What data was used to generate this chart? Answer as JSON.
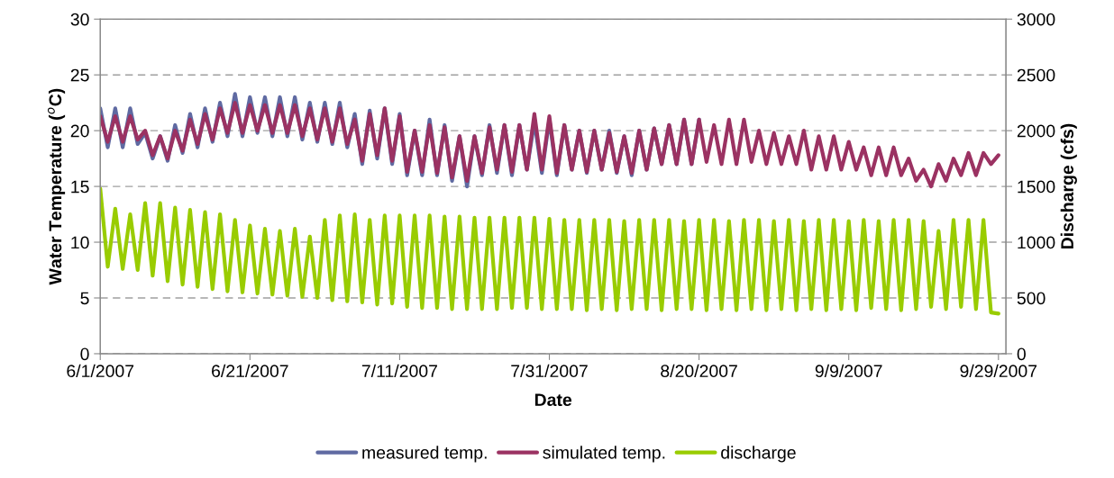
{
  "chart_data": {
    "type": "line",
    "xlabel": "Date",
    "ylabel": "Water Temperature ($^{o}$C)",
    "y2label": "Discharge (cfs)",
    "x": [
      "2007-06-01",
      "2007-06-02",
      "2007-06-03",
      "2007-06-04",
      "2007-06-05",
      "2007-06-06",
      "2007-06-07",
      "2007-06-08",
      "2007-06-09",
      "2007-06-10",
      "2007-06-11",
      "2007-06-12",
      "2007-06-13",
      "2007-06-14",
      "2007-06-15",
      "2007-06-16",
      "2007-06-17",
      "2007-06-18",
      "2007-06-19",
      "2007-06-20",
      "2007-06-21",
      "2007-06-22",
      "2007-06-23",
      "2007-06-24",
      "2007-06-25",
      "2007-06-26",
      "2007-06-27",
      "2007-06-28",
      "2007-06-29",
      "2007-06-30",
      "2007-07-01",
      "2007-07-02",
      "2007-07-03",
      "2007-07-04",
      "2007-07-05",
      "2007-07-06",
      "2007-07-07",
      "2007-07-08",
      "2007-07-09",
      "2007-07-10",
      "2007-07-11",
      "2007-07-12",
      "2007-07-13",
      "2007-07-14",
      "2007-07-15",
      "2007-07-16",
      "2007-07-17",
      "2007-07-18",
      "2007-07-19",
      "2007-07-20",
      "2007-07-21",
      "2007-07-22",
      "2007-07-23",
      "2007-07-24",
      "2007-07-25",
      "2007-07-26",
      "2007-07-27",
      "2007-07-28",
      "2007-07-29",
      "2007-07-30",
      "2007-07-31",
      "2007-08-01",
      "2007-08-02",
      "2007-08-03",
      "2007-08-04",
      "2007-08-05",
      "2007-08-06",
      "2007-08-07",
      "2007-08-08",
      "2007-08-09",
      "2007-08-10",
      "2007-08-11",
      "2007-08-12",
      "2007-08-13",
      "2007-08-14",
      "2007-08-15",
      "2007-08-16",
      "2007-08-17",
      "2007-08-18",
      "2007-08-19",
      "2007-08-20",
      "2007-08-21",
      "2007-08-22",
      "2007-08-23",
      "2007-08-24",
      "2007-08-25",
      "2007-08-26",
      "2007-08-27",
      "2007-08-28",
      "2007-08-29",
      "2007-08-30",
      "2007-08-31",
      "2007-09-01",
      "2007-09-02",
      "2007-09-03",
      "2007-09-04",
      "2007-09-05",
      "2007-09-06",
      "2007-09-07",
      "2007-09-08",
      "2007-09-09",
      "2007-09-10",
      "2007-09-11",
      "2007-09-12",
      "2007-09-13",
      "2007-09-14",
      "2007-09-15",
      "2007-09-16",
      "2007-09-17",
      "2007-09-18",
      "2007-09-19",
      "2007-09-20",
      "2007-09-21",
      "2007-09-22",
      "2007-09-23",
      "2007-09-24",
      "2007-09-25",
      "2007-09-26",
      "2007-09-27",
      "2007-09-28",
      "2007-09-29"
    ],
    "series": [
      {
        "name": "measured temp.",
        "color": "#5f6aa2",
        "values": [
          22,
          18.5,
          22,
          18.5,
          22,
          18.8,
          19.8,
          17.5,
          19.5,
          17.3,
          20.5,
          18,
          21.5,
          18.5,
          22,
          19,
          22.5,
          19.5,
          23.3,
          19.5,
          23,
          19.8,
          23,
          19.5,
          23,
          19.5,
          23,
          19.2,
          22.5,
          19,
          22.5,
          18.8,
          22.5,
          18.5,
          21.5,
          17,
          21.8,
          17.5,
          22,
          17,
          21.5,
          16,
          20,
          16,
          21,
          16,
          20.5,
          15.5,
          19.5,
          15,
          19.5,
          16,
          20.5,
          16.2,
          20.5,
          16,
          20.5,
          16.5,
          20.8,
          16.2,
          21,
          16,
          20.5,
          16.5,
          20,
          16.2,
          20,
          16.5,
          20,
          16.2,
          19.5,
          16,
          20,
          16.5,
          20.2,
          17,
          20.5,
          17,
          21,
          17,
          21,
          null,
          null,
          null,
          null,
          null,
          null,
          null,
          null,
          null,
          null,
          null,
          null,
          null,
          null,
          null,
          null,
          null,
          null,
          null,
          null,
          null,
          null,
          null,
          null,
          null,
          null,
          null,
          null,
          null,
          null,
          null,
          null,
          null,
          null,
          null,
          null,
          null,
          null,
          null,
          null
        ]
      },
      {
        "name": "simulated temp.",
        "color": "#9b3262",
        "values": [
          21.3,
          19,
          21.3,
          19,
          21.3,
          19.2,
          20,
          17.8,
          19.5,
          17.5,
          20,
          18.2,
          21,
          18.8,
          21.5,
          19.2,
          22,
          19.8,
          22.5,
          19.8,
          22.3,
          20,
          22.3,
          19.8,
          22.3,
          19.8,
          22.3,
          19.5,
          22,
          19.2,
          22,
          19,
          22,
          18.8,
          21,
          17.3,
          21.5,
          17.8,
          22,
          17.3,
          21.3,
          16.3,
          20,
          16.3,
          20.5,
          16.2,
          20.3,
          15.8,
          19.5,
          15.5,
          19.5,
          16.2,
          20.3,
          16.5,
          20.5,
          16.3,
          20.5,
          16.5,
          21.5,
          16.5,
          21.3,
          16.2,
          20.5,
          16.5,
          20,
          16.3,
          20,
          16.5,
          19.8,
          16.3,
          19.5,
          16.2,
          20,
          16.5,
          20.2,
          17,
          20.5,
          17,
          21,
          17,
          21,
          17.2,
          20.5,
          17,
          21,
          17,
          21,
          17.2,
          20,
          17,
          19.8,
          17,
          19.5,
          17,
          20,
          16.5,
          19.5,
          16.5,
          19.5,
          16.5,
          19,
          16.5,
          18.5,
          16,
          18.5,
          16,
          18.5,
          16,
          17.5,
          15.5,
          16.5,
          15,
          17,
          15.5,
          17.5,
          16,
          18,
          16,
          18,
          17,
          17.8
        ]
      },
      {
        "name": "discharge",
        "color": "#99cc00",
        "axis": "y2",
        "values": [
          1480,
          780,
          1300,
          760,
          1250,
          750,
          1350,
          700,
          1350,
          650,
          1310,
          620,
          1290,
          600,
          1270,
          580,
          1250,
          560,
          1200,
          550,
          1150,
          540,
          1120,
          530,
          1100,
          520,
          1120,
          510,
          1050,
          500,
          1200,
          480,
          1240,
          470,
          1250,
          460,
          1200,
          440,
          1240,
          450,
          1240,
          420,
          1240,
          410,
          1240,
          410,
          1230,
          400,
          1230,
          400,
          1220,
          400,
          1220,
          400,
          1220,
          410,
          1220,
          410,
          1220,
          400,
          1210,
          400,
          1200,
          400,
          1200,
          390,
          1200,
          400,
          1200,
          390,
          1190,
          400,
          1200,
          400,
          1200,
          390,
          1200,
          400,
          1190,
          400,
          1200,
          390,
          1200,
          400,
          1190,
          390,
          1200,
          400,
          1200,
          390,
          1190,
          400,
          1200,
          390,
          1190,
          400,
          1200,
          390,
          1200,
          400,
          1190,
          390,
          1200,
          410,
          1190,
          400,
          1200,
          390,
          1200,
          400,
          1190,
          420,
          1100,
          400,
          1200,
          420,
          1200,
          400,
          1200,
          370,
          360
        ]
      }
    ],
    "xlim": [
      "2007-06-01",
      "2007-09-30"
    ],
    "xticks": [
      {
        "value": "2007-06-01",
        "label": "6/1/2007"
      },
      {
        "value": "2007-06-21",
        "label": "6/21/2007"
      },
      {
        "value": "2007-07-11",
        "label": "7/11/2007"
      },
      {
        "value": "2007-07-31",
        "label": "7/31/2007"
      },
      {
        "value": "2007-08-20",
        "label": "8/20/2007"
      },
      {
        "value": "2007-09-09",
        "label": "9/9/2007"
      },
      {
        "value": "2007-09-29",
        "label": "9/29/2007"
      }
    ],
    "ylim": [
      0,
      30
    ],
    "yticks": [
      0,
      5,
      10,
      15,
      20,
      25,
      30
    ],
    "y2lim": [
      0,
      3000
    ],
    "y2ticks": [
      0,
      500,
      1000,
      1500,
      2000,
      2500,
      3000
    ],
    "grid": "y",
    "legend": "bottom",
    "marker": "none",
    "line_style": "solid"
  }
}
